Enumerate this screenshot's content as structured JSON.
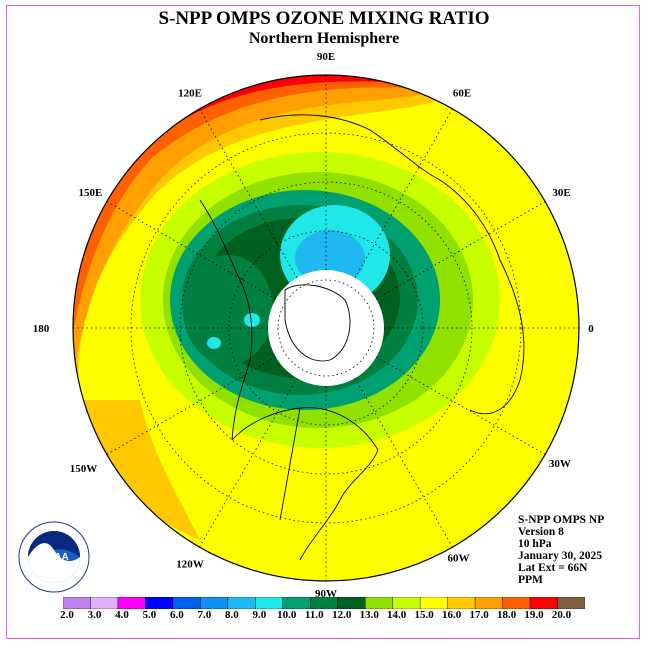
{
  "title": "S-NPP OMPS OZONE MIXING RATIO",
  "subtitle": "Northern Hemisphere",
  "longitude_labels": [
    "0",
    "30E",
    "60E",
    "90E",
    "120E",
    "150E",
    "180",
    "150W",
    "120W",
    "90W",
    "60W",
    "30W"
  ],
  "info": {
    "instrument": "S-NPP OMPS NP",
    "version": "Version 8",
    "level": "10 hPa",
    "date": "January 30, 2025",
    "lat_ext": "Lat Ext = 66N",
    "units": "PPM"
  },
  "logo": {
    "text": "NOAA",
    "ring_text": "NATIONAL OCEANIC AND ATMOSPHERIC ADMINISTRATION · U.S. DEPARTMENT OF COMMERCE"
  },
  "colorbar": {
    "ticks": [
      "2.0",
      "3.0",
      "4.0",
      "5.0",
      "6.0",
      "7.0",
      "8.0",
      "9.0",
      "10.0",
      "11.0",
      "12.0",
      "13.0",
      "14.0",
      "15.0",
      "16.0",
      "17.0",
      "18.0",
      "19.0",
      "20.0"
    ],
    "colors": [
      "#c080f0",
      "#e0b0f8",
      "#ff00ff",
      "#0000ff",
      "#0060f0",
      "#1090f0",
      "#20b8f0",
      "#20e8e8",
      "#00a070",
      "#008040",
      "#006020",
      "#90e000",
      "#c8ff00",
      "#ffff00",
      "#ffc800",
      "#ffa000",
      "#ff6000",
      "#ff0000",
      "#806040"
    ]
  }
}
